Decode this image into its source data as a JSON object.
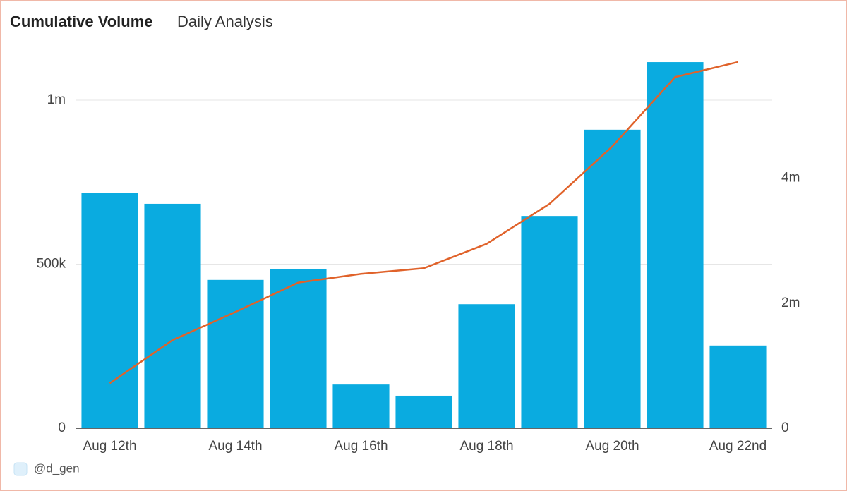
{
  "chart_data": {
    "type": "bar_line",
    "title": "Cumulative Volume",
    "subtitle": "Daily Analysis",
    "footer": "@d_gen",
    "categories": [
      "Aug 12th",
      null,
      "Aug 14th",
      null,
      "Aug 16th",
      null,
      "Aug 18th",
      null,
      "Aug 20th",
      null,
      "Aug 22nd"
    ],
    "series": [
      {
        "type": "bar",
        "color": "#0aabe0",
        "values": [
          718000,
          684000,
          452000,
          484000,
          133000,
          99000,
          378000,
          647000,
          910000,
          1116000,
          252000
        ]
      },
      {
        "type": "line",
        "axis": "y2",
        "color": "#e0622a",
        "values": [
          720000,
          1410000,
          1860000,
          2330000,
          2470000,
          2560000,
          2950000,
          3590000,
          4510000,
          5620000,
          5860000
        ]
      }
    ],
    "ylim": [
      0,
      1200000
    ],
    "yticks": [
      0,
      {
        "value": 500000,
        "label": "500k"
      },
      {
        "value": 1000000,
        "label": "1m"
      }
    ],
    "y2lim": [
      0,
      6300000
    ],
    "y2ticks": [
      0,
      {
        "value": 2000000,
        "label": "2m"
      },
      {
        "value": 4000000,
        "label": "4m"
      }
    ],
    "grid": true
  }
}
